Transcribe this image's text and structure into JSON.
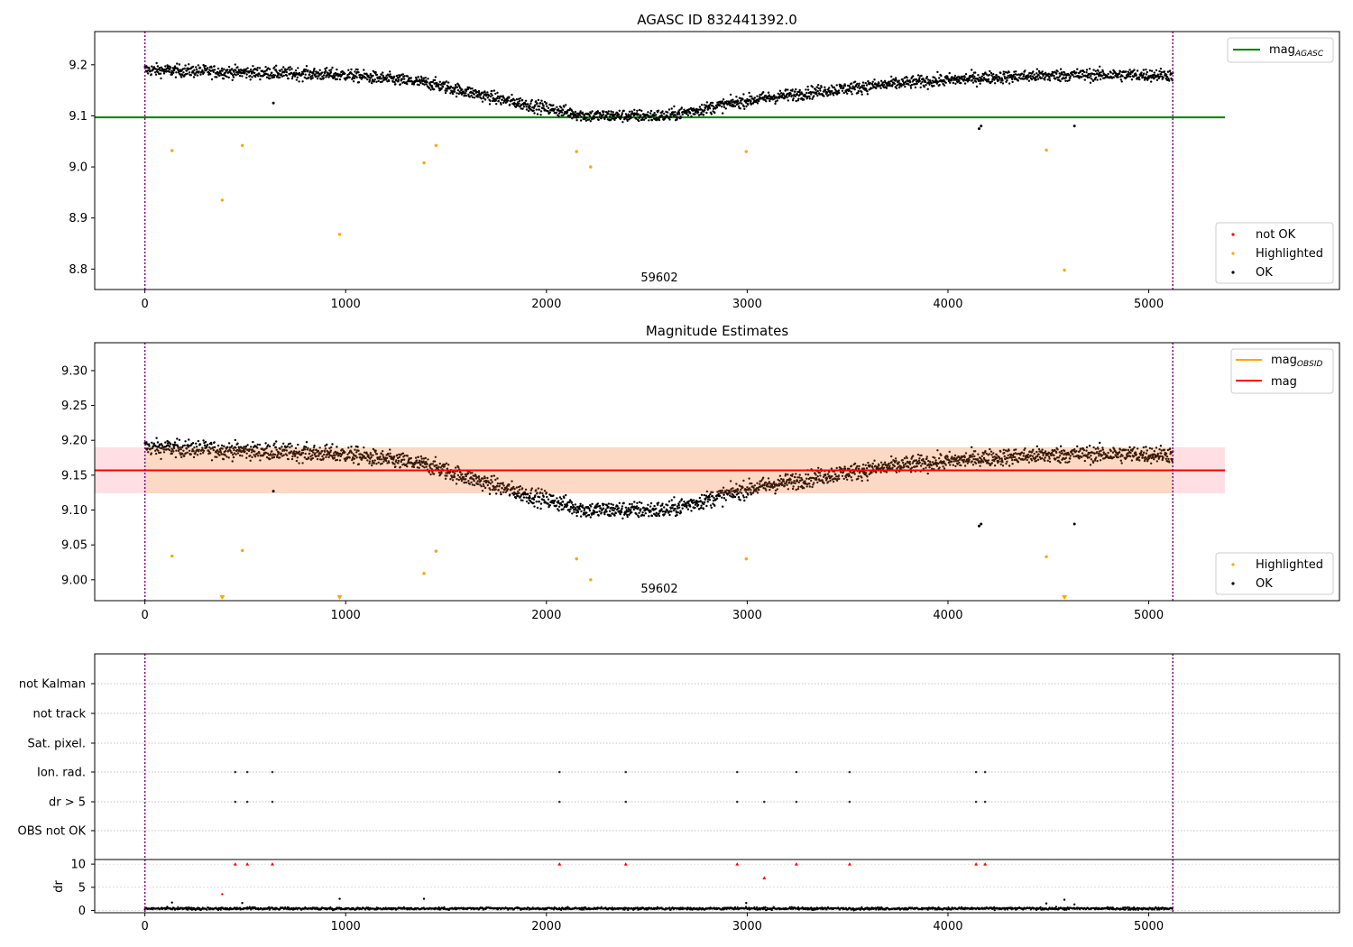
{
  "panel1": {
    "title": "AGASC ID 832441392.0",
    "obsid_label": "59602",
    "yticks": [
      "9.2",
      "9.1",
      "9.0",
      "8.9",
      "8.8"
    ],
    "xticks": [
      "0",
      "1000",
      "2000",
      "3000",
      "4000",
      "5000"
    ],
    "legend_line": {
      "base": "mag",
      "sub": "AGASC"
    },
    "legend_points": [
      "not OK",
      "Highlighted",
      "OK"
    ]
  },
  "panel2": {
    "title": "Magnitude Estimates",
    "obsid_label": "59602",
    "yticks": [
      "9.30",
      "9.25",
      "9.20",
      "9.15",
      "9.10",
      "9.05",
      "9.00"
    ],
    "xticks": [
      "0",
      "1000",
      "2000",
      "3000",
      "4000",
      "5000"
    ],
    "legend_lines": [
      {
        "base": "mag",
        "sub": "OBSID"
      },
      {
        "base": "mag",
        "sub": ""
      }
    ],
    "legend_points": [
      "Highlighted",
      "OK"
    ]
  },
  "panel3": {
    "flag_labels": [
      "not Kalman",
      "not track",
      "Sat. pixel.",
      "Ion. rad.",
      "dr > 5",
      "OBS not OK"
    ],
    "dr_ylabel": "dr",
    "dr_yticks": [
      "10",
      "5",
      "0"
    ],
    "xticks": [
      "0",
      "1000",
      "2000",
      "3000",
      "4000",
      "5000"
    ]
  },
  "colors": {
    "ok": "#000000",
    "highlighted": "#ffa500",
    "not_ok": "#ff0000",
    "agasc_line": "#008000",
    "mag_line": "#ff0000",
    "obsid_line": "#ffa500",
    "band_outer": "#ffdfe3",
    "band_inner": "#fcd9c4",
    "boundary": "#800080"
  },
  "chart_data": [
    {
      "type": "scatter",
      "title": "AGASC ID 832441392.0",
      "xlim": [
        -250,
        5950
      ],
      "ylim": [
        8.76,
        9.265
      ],
      "grid": false,
      "legend_placement": [
        "top-right",
        "bottom-right"
      ],
      "obsid_boundaries": [
        0,
        5120
      ],
      "mag_agasc": 9.097,
      "ok_trend": [
        [
          0,
          9.19
        ],
        [
          500,
          9.185
        ],
        [
          1000,
          9.18
        ],
        [
          1400,
          9.165
        ],
        [
          1800,
          9.13
        ],
        [
          2200,
          9.1
        ],
        [
          2600,
          9.1
        ],
        [
          3000,
          9.13
        ],
        [
          3400,
          9.15
        ],
        [
          3800,
          9.165
        ],
        [
          4200,
          9.175
        ],
        [
          4600,
          9.18
        ],
        [
          5100,
          9.18
        ]
      ],
      "ok_outliers": [
        [
          4155,
          9.075
        ],
        [
          4165,
          9.08
        ],
        [
          4630,
          9.08
        ],
        [
          640,
          9.125
        ]
      ],
      "highlighted": [
        [
          135,
          9.032
        ],
        [
          385,
          8.935
        ],
        [
          485,
          9.042
        ],
        [
          970,
          8.868
        ],
        [
          1390,
          9.008
        ],
        [
          1450,
          9.042
        ],
        [
          2150,
          9.03
        ],
        [
          2220,
          9.0
        ],
        [
          2995,
          9.03
        ],
        [
          4490,
          9.033
        ],
        [
          4580,
          8.798
        ]
      ],
      "not_ok": [],
      "series": [
        {
          "name": "mag_AGASC"
        },
        {
          "name": "not OK"
        },
        {
          "name": "Highlighted"
        },
        {
          "name": "OK"
        }
      ]
    },
    {
      "type": "scatter",
      "title": "Magnitude Estimates",
      "xlim": [
        -250,
        5950
      ],
      "ylim": [
        8.97,
        9.34
      ],
      "grid": false,
      "legend_placement": [
        "top-right",
        "bottom-right"
      ],
      "obsid_boundaries": [
        0,
        5120
      ],
      "mag": 9.157,
      "mag_obsid": 9.157,
      "mag_band": [
        9.124,
        9.19
      ],
      "ok_outliers": [
        [
          4155,
          9.077
        ],
        [
          4165,
          9.08
        ],
        [
          4630,
          9.08
        ],
        [
          640,
          9.127
        ]
      ],
      "highlighted": [
        [
          135,
          9.034
        ],
        [
          485,
          9.042
        ],
        [
          1390,
          9.009
        ],
        [
          1450,
          9.041
        ],
        [
          2150,
          9.03
        ],
        [
          2220,
          9.0
        ],
        [
          2995,
          9.03
        ],
        [
          4490,
          9.033
        ]
      ],
      "highlighted_below_axis": [
        385,
        970,
        4580
      ],
      "series": [
        {
          "name": "mag_OBSID"
        },
        {
          "name": "mag"
        },
        {
          "name": "Highlighted"
        },
        {
          "name": "OK"
        }
      ]
    },
    {
      "type": "scatter",
      "title": "",
      "xlim": [
        -250,
        5950
      ],
      "categories": [
        "not Kalman",
        "not track",
        "Sat. pixel.",
        "Ion. rad.",
        "dr > 5",
        "OBS not OK"
      ],
      "flags": {
        "Ion. rad.": [
          450,
          510,
          635,
          2065,
          2395,
          2950,
          3245,
          3510,
          4140,
          4185
        ],
        "dr > 5": [
          450,
          510,
          635,
          2065,
          2395,
          2950,
          3085,
          3245,
          3510,
          4140,
          4185
        ]
      },
      "dr": {
        "ylabel": "dr",
        "ylim": [
          -0.5,
          11
        ],
        "typical": 0.4,
        "high": [
          [
            450,
            10
          ],
          [
            510,
            10
          ],
          [
            635,
            10
          ],
          [
            2065,
            10
          ],
          [
            2395,
            10
          ],
          [
            2950,
            10
          ],
          [
            3245,
            10
          ],
          [
            3510,
            10
          ],
          [
            4140,
            10
          ],
          [
            4185,
            10
          ],
          [
            3085,
            7
          ]
        ],
        "medium": [
          [
            385,
            3.5
          ]
        ],
        "small": [
          [
            135,
            1.7
          ],
          [
            485,
            1.6
          ],
          [
            970,
            2.5
          ],
          [
            1390,
            2.5
          ],
          [
            2995,
            1.6
          ],
          [
            4490,
            1.5
          ],
          [
            4580,
            2.3
          ],
          [
            4630,
            1.3
          ]
        ]
      }
    }
  ]
}
